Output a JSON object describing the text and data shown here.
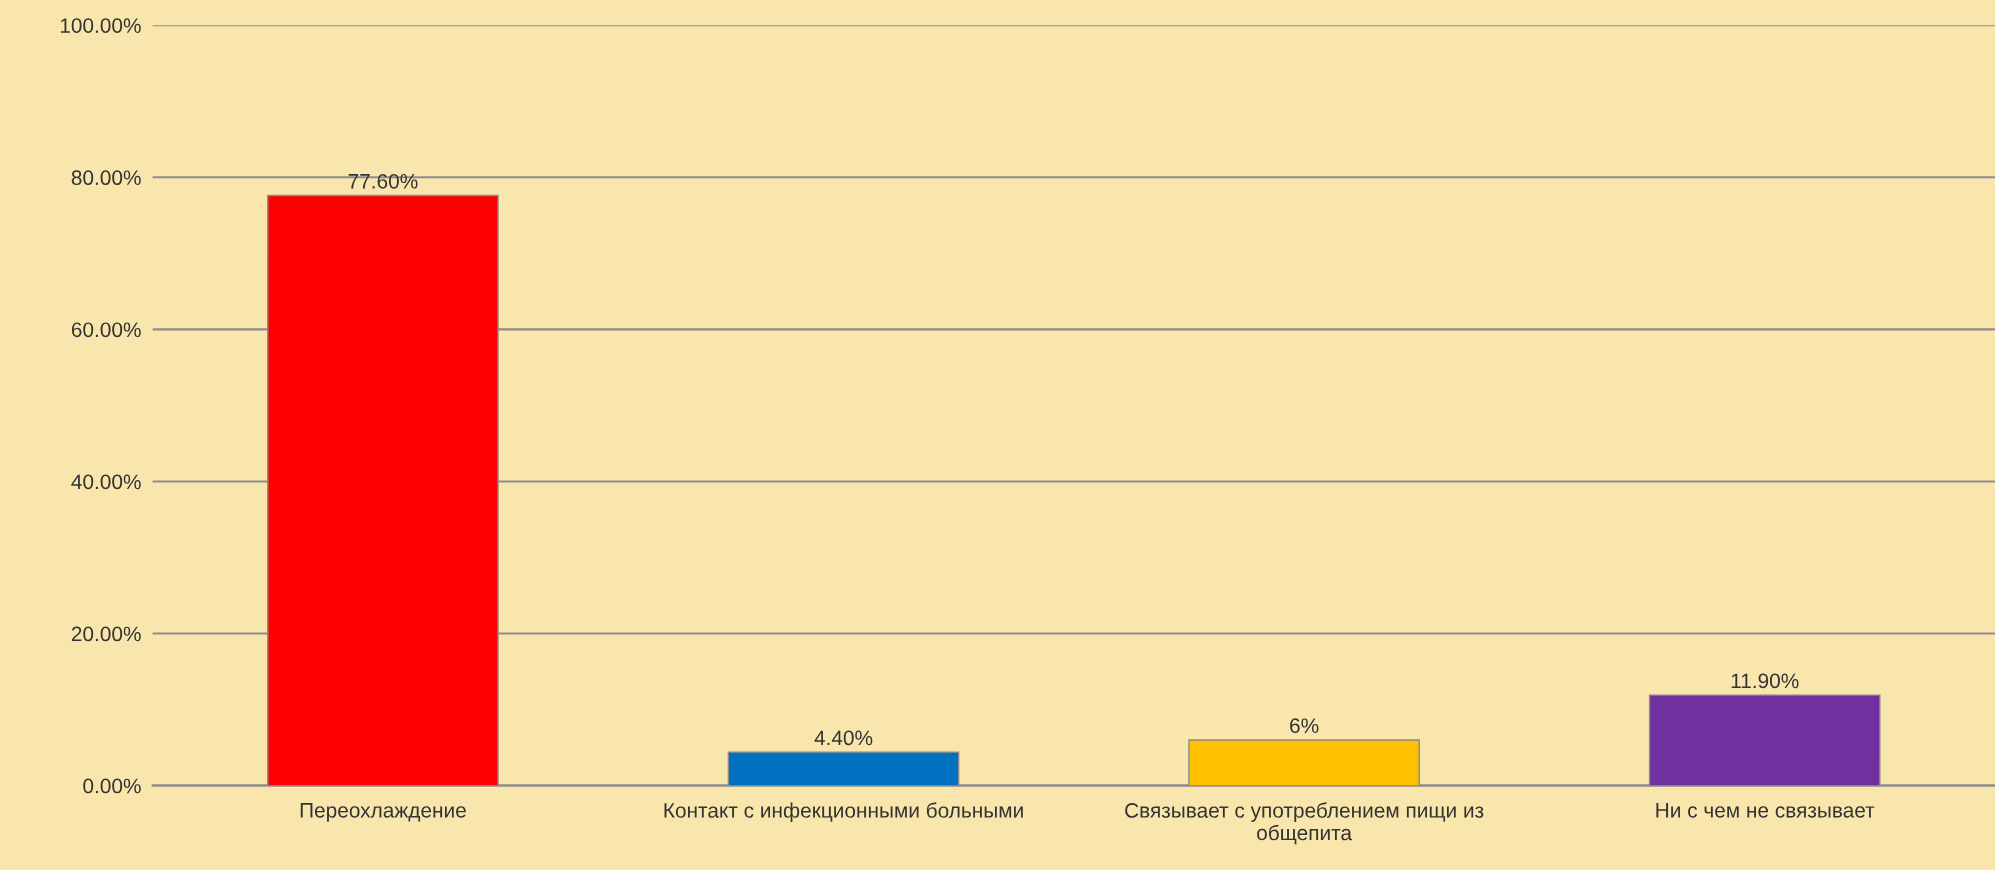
{
  "chart_data": {
    "type": "bar",
    "categories": [
      "Переохлаждение",
      "Контакт с инфекционными больными",
      "Связывает с употреблением пищи из общепита",
      "Ни с чем не связывает"
    ],
    "values": [
      77.6,
      4.4,
      6,
      11.9
    ],
    "colors": [
      "#ff0000",
      "#0070c0",
      "#ffc000",
      "#7030a0"
    ],
    "value_labels": [
      "77.60%",
      "4.40%",
      "6%",
      "11.90%"
    ],
    "ylim": [
      0,
      100
    ],
    "yticks": [
      {
        "value": 0,
        "label": "0.00%"
      },
      {
        "value": 20,
        "label": "20.00%"
      },
      {
        "value": 40,
        "label": "40.00%"
      },
      {
        "value": 60,
        "label": "60.00%"
      },
      {
        "value": 80,
        "label": "80.00%"
      },
      {
        "value": 100,
        "label": "100.00%"
      }
    ],
    "grid": "y"
  }
}
